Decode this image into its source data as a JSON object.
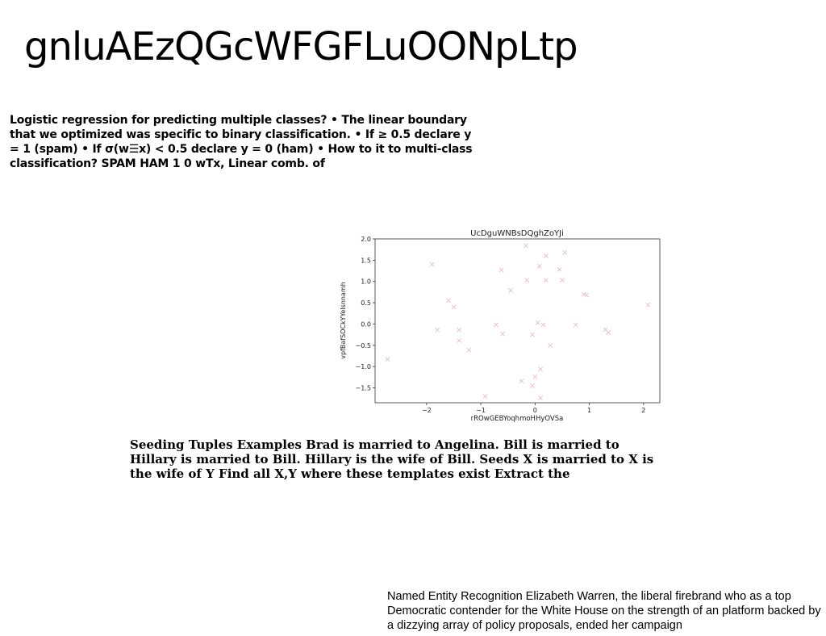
{
  "page": {
    "title": "gnluAEzQGcWFGFLuOONpLtp"
  },
  "text_blocks": {
    "logistic": "Logistic regression for predicting multiple classes? • The linear boundary that we optimized was specific to binary classification. • If ≥ 0.5 declare y = 1 (spam) • If σ(w☰x) < 0.5 declare y = 0 (ham) • How to it to multi-class classification? SPAM HAM 1 0 wTx, Linear comb. of",
    "seeding": "Seeding Tuples Examples Brad is married to Angelina. Bill is married to Hillary is married to Bill. Hillary is the wife of Bill. Seeds X is married to X is the wife of Y Find all X,Y where these templates exist Extract the",
    "ner": "Named Entity Recognition Elizabeth Warren, the liberal firebrand who as a top Democratic contender for the White House on the strength of an platform backed by a dizzying array of policy proposals, ended her campaign"
  },
  "chart_data": {
    "type": "scatter",
    "title": "UcDguWNBsDQghZoYJi",
    "xlabel": "rROwGEBYoqhmoHHyOVSa",
    "ylabel": "vpfBafSOCkYYeIsnnamh",
    "xlim": [
      -2.95,
      2.3
    ],
    "ylim": [
      -1.85,
      2.0
    ],
    "xticks": [
      -2,
      -1,
      0,
      1,
      2
    ],
    "yticks": [
      -1.5,
      -1.0,
      -0.5,
      0.0,
      0.5,
      1.0,
      1.5,
      2.0
    ],
    "xtick_labels": [
      "−2",
      "−1",
      "0",
      "1",
      "2"
    ],
    "ytick_labels": [
      "−1.5",
      "−1.0",
      "−0.5",
      "0.0",
      "0.5",
      "1.0",
      "1.5",
      "2.0"
    ],
    "grid": false,
    "marker": "x",
    "marker_color": "#e8c4cc",
    "points": [
      {
        "x": -2.72,
        "y": -0.83
      },
      {
        "x": -1.9,
        "y": 1.4
      },
      {
        "x": -1.8,
        "y": -0.14
      },
      {
        "x": -1.6,
        "y": 0.55
      },
      {
        "x": -1.5,
        "y": 0.4
      },
      {
        "x": -1.4,
        "y": -0.14
      },
      {
        "x": -1.4,
        "y": -0.39
      },
      {
        "x": -1.22,
        "y": -0.61
      },
      {
        "x": -0.92,
        "y": -1.7
      },
      {
        "x": -0.72,
        "y": -0.02
      },
      {
        "x": -0.62,
        "y": 1.27
      },
      {
        "x": -0.6,
        "y": -0.23
      },
      {
        "x": -0.45,
        "y": 0.79
      },
      {
        "x": -0.25,
        "y": -1.34
      },
      {
        "x": -0.17,
        "y": 1.84
      },
      {
        "x": -0.15,
        "y": 1.03
      },
      {
        "x": -0.05,
        "y": -1.45
      },
      {
        "x": -0.05,
        "y": -0.25
      },
      {
        "x": 0.0,
        "y": -1.24
      },
      {
        "x": 0.05,
        "y": 0.03
      },
      {
        "x": 0.08,
        "y": 1.36
      },
      {
        "x": 0.1,
        "y": -1.06
      },
      {
        "x": 0.1,
        "y": -1.74
      },
      {
        "x": 0.15,
        "y": -0.02
      },
      {
        "x": 0.2,
        "y": 1.6
      },
      {
        "x": 0.2,
        "y": 1.03
      },
      {
        "x": 0.28,
        "y": -0.5
      },
      {
        "x": 0.45,
        "y": 1.28
      },
      {
        "x": 0.5,
        "y": 1.03
      },
      {
        "x": 0.55,
        "y": 1.68
      },
      {
        "x": 0.75,
        "y": -0.02
      },
      {
        "x": 0.9,
        "y": 0.7
      },
      {
        "x": 0.95,
        "y": 0.68
      },
      {
        "x": 1.3,
        "y": -0.13
      },
      {
        "x": 1.35,
        "y": -0.2
      },
      {
        "x": 2.08,
        "y": 0.45
      }
    ]
  }
}
